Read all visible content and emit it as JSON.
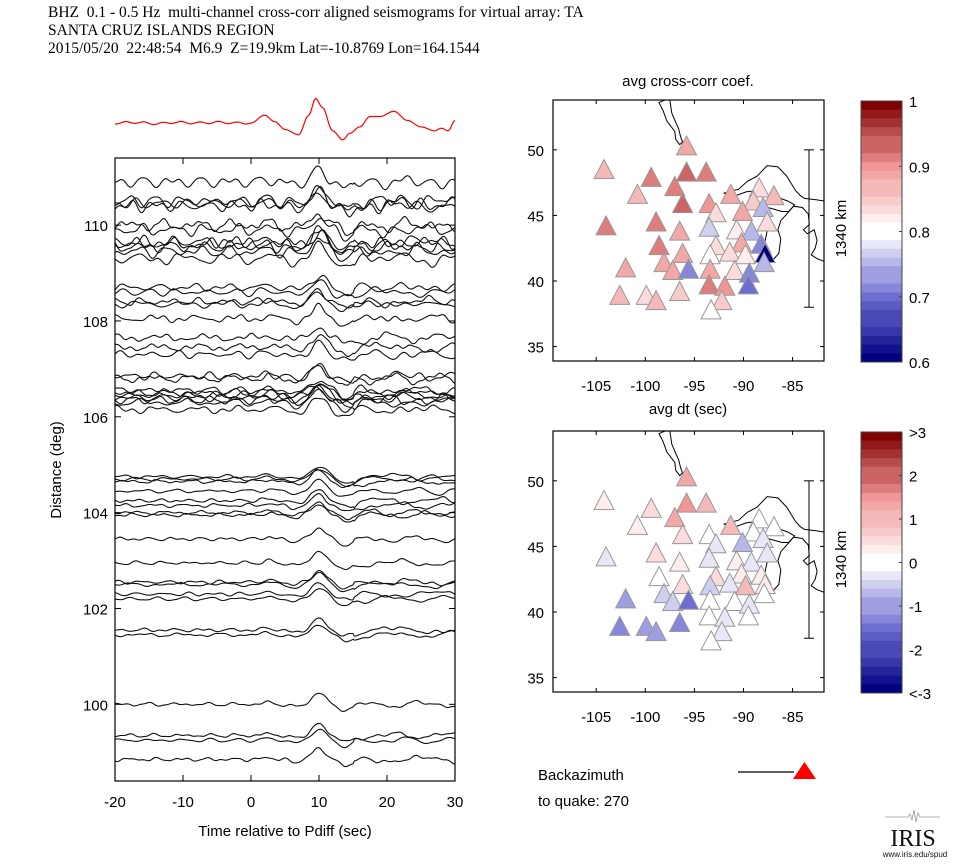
{
  "header": {
    "line1": "BHZ  0.1 - 0.5 Hz  multi-channel cross-corr aligned seismograms for virtual array: TA",
    "line2": "SANTA CRUZ ISLANDS REGION",
    "line3": "2015/05/20  22:48:54  M6.9  Z=19.9km Lat=-10.8769 Lon=164.1544"
  },
  "backazimuth": {
    "label1": "Backazimuth",
    "label2": "to quake:  270",
    "arrow_color": "#ff0000"
  },
  "logo": {
    "name": "IRIS",
    "url_text": "www.iris.edu/spud"
  },
  "chart_data": [
    {
      "type": "line",
      "name": "stacked-beam",
      "title": "",
      "color": "#ff0000",
      "x": [
        -20,
        -17,
        -14,
        -11,
        -8,
        -5,
        -2,
        0,
        2,
        3.5,
        5,
        7,
        8.5,
        9.5,
        10.5,
        12,
        13.5,
        14.5,
        16,
        17.5,
        19,
        21,
        23,
        25,
        27,
        28,
        29,
        30
      ],
      "values": [
        0,
        0.05,
        -0.05,
        0.05,
        0,
        0.05,
        0,
        0,
        0.6,
        0.1,
        -0.5,
        -0.9,
        0.6,
        1.9,
        1.2,
        -0.6,
        -1.3,
        -0.8,
        -0.3,
        0.5,
        0.5,
        0.9,
        0.2,
        -0.3,
        -0.6,
        -0.4,
        -0.6,
        0.2
      ]
    },
    {
      "type": "line",
      "title": "",
      "xlabel": "Time relative to Pdiff (sec)",
      "ylabel": "Distance (deg)",
      "xlim": [
        -20,
        30
      ],
      "ylim": [
        98.4,
        111.4
      ],
      "xticks": [
        -20,
        -10,
        0,
        10,
        20,
        30
      ],
      "yticks": [
        100,
        102,
        104,
        106,
        108,
        110
      ],
      "pulse_time_sec": 10,
      "trace_distances_deg": [
        110.9,
        110.5,
        110.45,
        110.4,
        110.0,
        109.9,
        109.65,
        109.6,
        109.55,
        109.45,
        109.3,
        108.7,
        108.6,
        108.4,
        108.35,
        108.05,
        107.65,
        107.45,
        107.3,
        106.85,
        106.8,
        106.55,
        106.5,
        106.45,
        106.4,
        106.35,
        106.3,
        106.15,
        104.75,
        104.7,
        104.65,
        104.45,
        104.25,
        104.15,
        104.0,
        103.95,
        103.45,
        102.95,
        102.55,
        102.5,
        102.3,
        102.2,
        101.55,
        101.45,
        100.0,
        99.35,
        99.25,
        98.85
      ]
    },
    {
      "type": "scatter",
      "title": "avg cross-corr coef.",
      "xlabel": "avg dt (sec)",
      "xlim": [
        -109.4,
        -81.8
      ],
      "ylim": [
        33.9,
        53.8
      ],
      "xticks": [
        -105,
        -100,
        -95,
        -90,
        -85
      ],
      "yticks": [
        35,
        40,
        45,
        50
      ],
      "scale_bar_label": "1340 km",
      "colorbar": {
        "min": 0.6,
        "max": 1.0,
        "ticks": [
          "0.6",
          "0.7",
          "0.8",
          "0.9",
          "1"
        ]
      },
      "stations": [
        {
          "lon": -95.8,
          "lat": 50.3,
          "v": 0.88
        },
        {
          "lon": -104.2,
          "lat": 48.5,
          "v": 0.87
        },
        {
          "lon": -95.8,
          "lat": 48.3,
          "v": 0.93
        },
        {
          "lon": -93.8,
          "lat": 48.3,
          "v": 0.91
        },
        {
          "lon": -99.4,
          "lat": 47.9,
          "v": 0.92
        },
        {
          "lon": -97.0,
          "lat": 47.2,
          "v": 0.91
        },
        {
          "lon": -100.8,
          "lat": 46.6,
          "v": 0.87
        },
        {
          "lon": -91.3,
          "lat": 46.6,
          "v": 0.88
        },
        {
          "lon": -88.4,
          "lat": 47.1,
          "v": 0.84
        },
        {
          "lon": -86.9,
          "lat": 46.5,
          "v": 0.86
        },
        {
          "lon": -96.2,
          "lat": 45.9,
          "v": 0.93
        },
        {
          "lon": -93.5,
          "lat": 45.9,
          "v": 0.9
        },
        {
          "lon": -89.0,
          "lat": 46.1,
          "v": 0.85
        },
        {
          "lon": -88.0,
          "lat": 45.6,
          "v": 0.75
        },
        {
          "lon": -92.8,
          "lat": 45.2,
          "v": 0.83
        },
        {
          "lon": -90.1,
          "lat": 45.3,
          "v": 0.88
        },
        {
          "lon": -104.0,
          "lat": 44.2,
          "v": 0.92
        },
        {
          "lon": -98.9,
          "lat": 44.5,
          "v": 0.91
        },
        {
          "lon": -96.5,
          "lat": 43.8,
          "v": 0.88
        },
        {
          "lon": -93.5,
          "lat": 44.1,
          "v": 0.77
        },
        {
          "lon": -90.7,
          "lat": 43.9,
          "v": 0.82
        },
        {
          "lon": -89.2,
          "lat": 43.8,
          "v": 0.75
        },
        {
          "lon": -87.6,
          "lat": 44.5,
          "v": 0.83
        },
        {
          "lon": -98.6,
          "lat": 42.7,
          "v": 0.91
        },
        {
          "lon": -92.8,
          "lat": 42.7,
          "v": 0.84
        },
        {
          "lon": -90.2,
          "lat": 42.9,
          "v": 0.88
        },
        {
          "lon": -88.2,
          "lat": 42.8,
          "v": 0.72
        },
        {
          "lon": -96.2,
          "lat": 42.1,
          "v": 0.88
        },
        {
          "lon": -93.4,
          "lat": 42.0,
          "v": 0.8
        },
        {
          "lon": -91.4,
          "lat": 42.2,
          "v": 0.83
        },
        {
          "lon": -89.8,
          "lat": 42.0,
          "v": 0.82
        },
        {
          "lon": -87.8,
          "lat": 42.1,
          "v": 0.6
        },
        {
          "lon": -98.1,
          "lat": 41.4,
          "v": 0.89
        },
        {
          "lon": -87.9,
          "lat": 41.4,
          "v": 0.75
        },
        {
          "lon": -102.0,
          "lat": 41.0,
          "v": 0.88
        },
        {
          "lon": -97.2,
          "lat": 40.8,
          "v": 0.89
        },
        {
          "lon": -95.6,
          "lat": 40.9,
          "v": 0.71
        },
        {
          "lon": -93.4,
          "lat": 40.9,
          "v": 0.89
        },
        {
          "lon": -90.9,
          "lat": 40.8,
          "v": 0.83
        },
        {
          "lon": -89.4,
          "lat": 40.6,
          "v": 0.71
        },
        {
          "lon": -93.5,
          "lat": 39.7,
          "v": 0.91
        },
        {
          "lon": -91.9,
          "lat": 39.6,
          "v": 0.9
        },
        {
          "lon": -89.5,
          "lat": 39.7,
          "v": 0.7
        },
        {
          "lon": -102.6,
          "lat": 38.9,
          "v": 0.86
        },
        {
          "lon": -99.9,
          "lat": 38.9,
          "v": 0.83
        },
        {
          "lon": -98.9,
          "lat": 38.5,
          "v": 0.86
        },
        {
          "lon": -96.5,
          "lat": 39.2,
          "v": 0.85
        },
        {
          "lon": -92.2,
          "lat": 38.5,
          "v": 0.85
        },
        {
          "lon": -93.3,
          "lat": 37.8,
          "v": 0.8
        }
      ]
    },
    {
      "type": "scatter",
      "title": "avg dt (sec)",
      "xlabel": "",
      "xlim": [
        -109.4,
        -81.8
      ],
      "ylim": [
        33.9,
        53.8
      ],
      "xticks": [
        -105,
        -100,
        -95,
        -90,
        -85
      ],
      "yticks": [
        35,
        40,
        45,
        50
      ],
      "scale_bar_label": "1340 km",
      "colorbar": {
        "min": -3,
        "max": 3,
        "ticks": [
          "<-3",
          "-2",
          "-1",
          "0",
          "1",
          "2",
          ">3"
        ]
      },
      "stations": [
        {
          "lon": -95.8,
          "lat": 50.3,
          "v": 1.3
        },
        {
          "lon": -104.2,
          "lat": 48.5,
          "v": 0.2
        },
        {
          "lon": -95.8,
          "lat": 48.3,
          "v": 1.4
        },
        {
          "lon": -93.8,
          "lat": 48.3,
          "v": 1.1
        },
        {
          "lon": -99.4,
          "lat": 47.9,
          "v": 0.5
        },
        {
          "lon": -97.0,
          "lat": 47.2,
          "v": 1.2
        },
        {
          "lon": -100.8,
          "lat": 46.6,
          "v": 0.3
        },
        {
          "lon": -91.3,
          "lat": 46.6,
          "v": 0.9
        },
        {
          "lon": -88.4,
          "lat": 47.1,
          "v": 0.0
        },
        {
          "lon": -86.9,
          "lat": 46.5,
          "v": 0.0
        },
        {
          "lon": -96.2,
          "lat": 45.9,
          "v": 0.4
        },
        {
          "lon": -93.5,
          "lat": 45.9,
          "v": -0.1
        },
        {
          "lon": -89.0,
          "lat": 46.1,
          "v": -0.1
        },
        {
          "lon": -88.0,
          "lat": 45.6,
          "v": -0.3
        },
        {
          "lon": -92.8,
          "lat": 45.2,
          "v": -0.3
        },
        {
          "lon": -90.1,
          "lat": 45.3,
          "v": -0.7
        },
        {
          "lon": -104.0,
          "lat": 44.2,
          "v": -0.2
        },
        {
          "lon": -98.9,
          "lat": 44.5,
          "v": 0.6
        },
        {
          "lon": -96.5,
          "lat": 43.8,
          "v": 0.3
        },
        {
          "lon": -93.5,
          "lat": 44.1,
          "v": -0.3
        },
        {
          "lon": -90.7,
          "lat": 43.9,
          "v": 0.2
        },
        {
          "lon": -89.2,
          "lat": 43.8,
          "v": -0.2
        },
        {
          "lon": -87.6,
          "lat": 44.5,
          "v": -0.3
        },
        {
          "lon": -98.6,
          "lat": 42.7,
          "v": 0.0
        },
        {
          "lon": -92.8,
          "lat": 42.7,
          "v": 0.6
        },
        {
          "lon": -90.2,
          "lat": 42.9,
          "v": 0.2
        },
        {
          "lon": -88.2,
          "lat": 42.8,
          "v": 0.2
        },
        {
          "lon": -96.2,
          "lat": 42.1,
          "v": 0.4
        },
        {
          "lon": -93.4,
          "lat": 42.0,
          "v": -0.6
        },
        {
          "lon": -91.4,
          "lat": 42.2,
          "v": -0.2
        },
        {
          "lon": -89.8,
          "lat": 42.0,
          "v": 1.0
        },
        {
          "lon": -87.8,
          "lat": 42.1,
          "v": 0.2
        },
        {
          "lon": -98.1,
          "lat": 41.4,
          "v": -0.4
        },
        {
          "lon": -87.9,
          "lat": 41.4,
          "v": -0.1
        },
        {
          "lon": -102.0,
          "lat": 41.0,
          "v": -0.9
        },
        {
          "lon": -97.2,
          "lat": 40.8,
          "v": -0.5
        },
        {
          "lon": -95.6,
          "lat": 40.9,
          "v": -1.5
        },
        {
          "lon": -93.4,
          "lat": 40.9,
          "v": 0.0
        },
        {
          "lon": -90.9,
          "lat": 40.8,
          "v": 0.0
        },
        {
          "lon": -89.4,
          "lat": 40.6,
          "v": -0.2
        },
        {
          "lon": -93.5,
          "lat": 39.7,
          "v": 0.0
        },
        {
          "lon": -91.9,
          "lat": 39.6,
          "v": -0.2
        },
        {
          "lon": -89.5,
          "lat": 39.7,
          "v": 0.0
        },
        {
          "lon": -102.6,
          "lat": 38.9,
          "v": -1.2
        },
        {
          "lon": -99.9,
          "lat": 38.9,
          "v": -0.9
        },
        {
          "lon": -98.9,
          "lat": 38.5,
          "v": -1.1
        },
        {
          "lon": -96.5,
          "lat": 39.2,
          "v": -1.3
        },
        {
          "lon": -92.2,
          "lat": 38.5,
          "v": -0.2
        },
        {
          "lon": -93.3,
          "lat": 37.8,
          "v": 0.0
        }
      ]
    }
  ]
}
